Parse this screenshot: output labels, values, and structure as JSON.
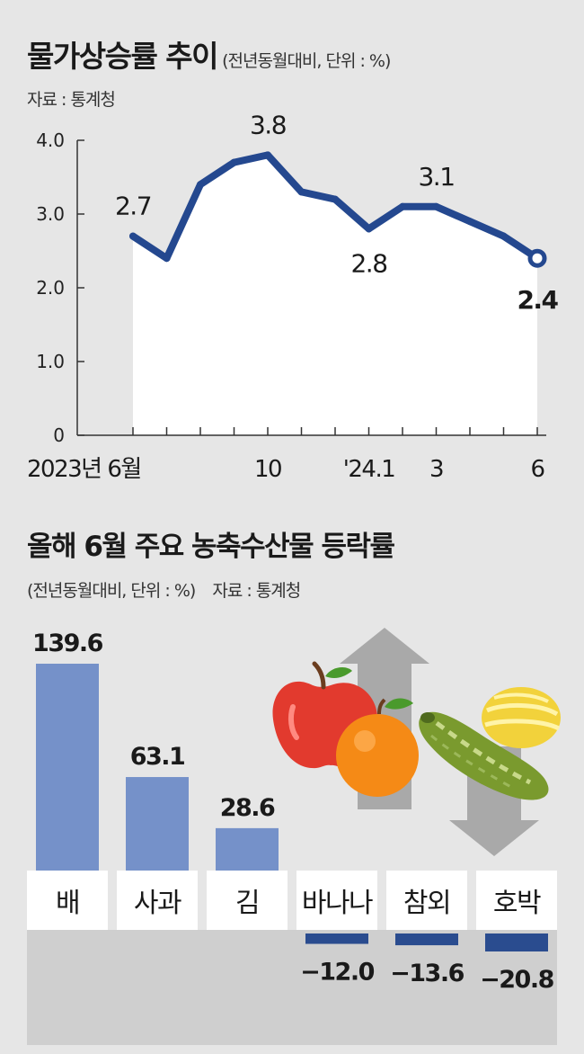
{
  "line_section": {
    "title": "물가상승률 추이",
    "unit_note": "(전년동월대비, 단위 : %)",
    "source": "자료 : 통계청"
  },
  "bar_section": {
    "title": "올해 6월 주요 농축수산물 등락률",
    "unit_note": "(전년동월대비, 단위 : %)",
    "source": "자료 : 통계청"
  },
  "colors": {
    "line": "#24488f",
    "bar_positive": "#7591c9",
    "bar_negative": "#2a4c8f",
    "area": "#ffffff",
    "label_box": "#ffffff",
    "negative_band": "#cfcfcf",
    "arrow": "#a9a9a9"
  },
  "illustration": {
    "icons": [
      "apple-icon",
      "orange-icon",
      "zucchini-icon",
      "melon-icon",
      "up-arrow-icon",
      "down-arrow-icon"
    ]
  },
  "chart_data": [
    {
      "type": "line",
      "x": [
        "2023-06",
        "2023-07",
        "2023-08",
        "2023-09",
        "2023-10",
        "2023-11",
        "2023-12",
        "2024-01",
        "2024-02",
        "2024-03",
        "2024-04",
        "2024-05",
        "2024-06"
      ],
      "series": [
        {
          "values": [
            2.7,
            2.4,
            3.4,
            3.7,
            3.8,
            3.3,
            3.2,
            2.8,
            3.1,
            3.1,
            2.9,
            2.7,
            2.4
          ]
        }
      ],
      "x_tick_labels": [
        {
          "index": 0,
          "label": "2023년 6월"
        },
        {
          "index": 4,
          "label": "10"
        },
        {
          "index": 7,
          "label": "'24.1"
        },
        {
          "index": 9,
          "label": "3"
        },
        {
          "index": 12,
          "label": "6"
        }
      ],
      "y_ticks": [
        "0",
        "1.0",
        "2.0",
        "3.0",
        "4.0"
      ],
      "ylim": [
        0,
        4
      ],
      "data_labels": [
        {
          "index": 0,
          "text": "2.7"
        },
        {
          "index": 4,
          "text": "3.8"
        },
        {
          "index": 7,
          "text": "2.8"
        },
        {
          "index": 9,
          "text": "3.1"
        },
        {
          "index": 12,
          "text": "2.4"
        }
      ],
      "grid": false
    },
    {
      "type": "bar",
      "categories": [
        "배",
        "사과",
        "김",
        "바나나",
        "참외",
        "호박"
      ],
      "values": [
        139.6,
        63.1,
        28.6,
        -12.0,
        -13.6,
        -20.8
      ],
      "value_labels": [
        "139.6",
        "63.1",
        "28.6",
        "−12.0",
        "−13.6",
        "−20.8"
      ]
    }
  ]
}
